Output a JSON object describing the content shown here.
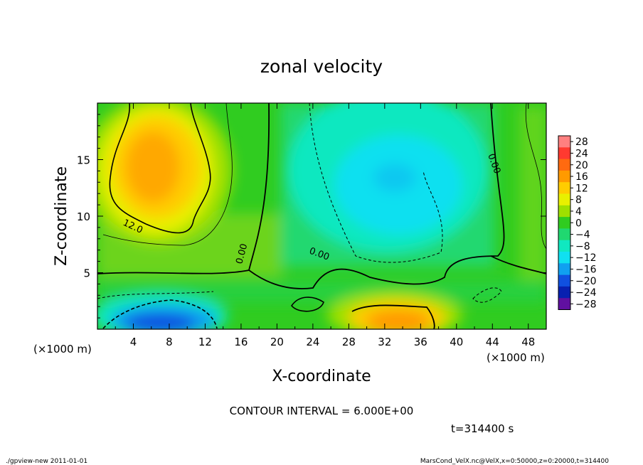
{
  "chart_data": {
    "type": "heatmap",
    "title": "zonal velocity",
    "xlabel": "X-coordinate",
    "ylabel": "Z-coordinate",
    "x_unit_note": "(×1000 m)",
    "z_unit_note": "(×1000 m)",
    "xlim": [
      0,
      50
    ],
    "ylim": [
      0,
      20
    ],
    "x_ticks": [
      "4",
      "8",
      "12",
      "16",
      "20",
      "24",
      "28",
      "32",
      "36",
      "40",
      "44",
      "48"
    ],
    "y_ticks": [
      "5",
      "10",
      "15"
    ],
    "colorbar": {
      "levels": [
        "28",
        "24",
        "20",
        "16",
        "12",
        "8",
        "4",
        "0",
        "−4",
        "−8",
        "−12",
        "−16",
        "−20",
        "−24",
        "−28"
      ],
      "colors": [
        "#ff8080",
        "#ff3a30",
        "#ff6a10",
        "#ff9a00",
        "#ffcc00",
        "#e8f000",
        "#9ee000",
        "#30cc20",
        "#20d870",
        "#10e8c0",
        "#10e0f0",
        "#10a0f0",
        "#1050e0",
        "#0820b0",
        "#6010a0"
      ]
    },
    "contour_labels": [
      "12.0",
      "0.00",
      "0.00",
      "0.00"
    ],
    "contour_interval_text": "CONTOUR INTERVAL = 6.000E+00",
    "time_text": "t=314400 s",
    "footer_left": "./gpview-new  2011-01-01",
    "footer_right": "MarsCond_VelX.nc@VelX,x=0:50000,z=0:20000,t=314400",
    "regions": [
      {
        "label": "upper-left jet core",
        "value": 16
      },
      {
        "label": "upper-middle flow",
        "value": -8
      },
      {
        "label": "surface low-level core",
        "value": 18
      },
      {
        "label": "surface reverse flow",
        "value": -18
      }
    ]
  }
}
